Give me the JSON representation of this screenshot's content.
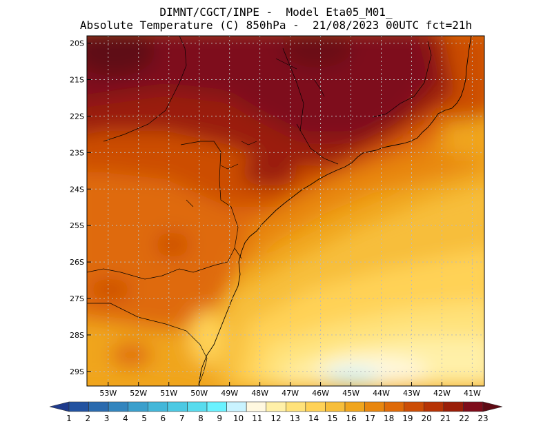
{
  "title": {
    "line1": "DIMNT/CGCT/INPE -  Model Eta05_M01_",
    "line2": "Absolute Temperature (C) 850hPa -  21/08/2023 00UTC fct=21h"
  },
  "map": {
    "lat_labels": [
      "20S",
      "21S",
      "22S",
      "23S",
      "24S",
      "25S",
      "26S",
      "27S",
      "28S",
      "29S"
    ],
    "lon_labels": [
      "53W",
      "52W",
      "51W",
      "50W",
      "49W",
      "48W",
      "47W",
      "46W",
      "45W",
      "44W",
      "43W",
      "42W",
      "41W"
    ],
    "lon_range": [
      -53.7,
      -40.6
    ],
    "lat_range": [
      -29.4,
      -19.8
    ]
  },
  "colorbar": {
    "labels": [
      "1",
      "2",
      "3",
      "4",
      "5",
      "6",
      "7",
      "8",
      "9",
      "10",
      "11",
      "12",
      "13",
      "14",
      "15",
      "16",
      "17",
      "18",
      "19",
      "20",
      "21",
      "22",
      "23"
    ],
    "colors": [
      "#1e3a8c",
      "#2252a0",
      "#2a6aae",
      "#3385be",
      "#3a9fcc",
      "#43b7d9",
      "#4cc9e3",
      "#58dcee",
      "#6af2ff",
      "#c9f3ff",
      "#fff8e0",
      "#fff0a8",
      "#ffe27a",
      "#ffd257",
      "#f7be3a",
      "#f0a51d",
      "#e8860e",
      "#df6a08",
      "#cc4d06",
      "#b63305",
      "#9a1e08",
      "#7e0c1a",
      "#5e0a14"
    ]
  }
}
